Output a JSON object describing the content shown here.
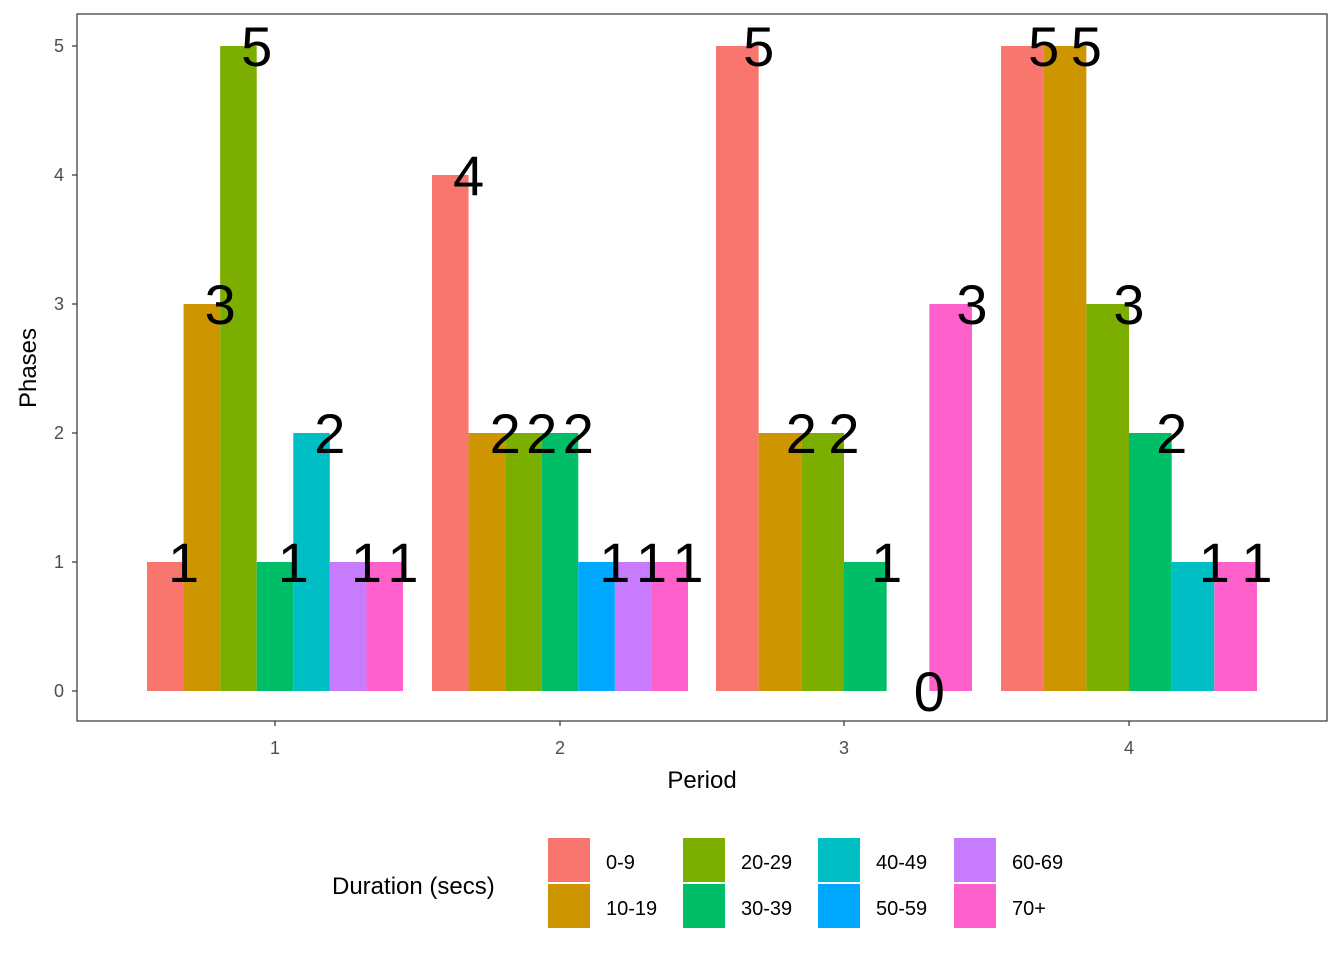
{
  "chart_data": {
    "type": "bar",
    "xlabel": "Period",
    "ylabel": "Phases",
    "categories": [
      "1",
      "2",
      "3",
      "4"
    ],
    "ylim": [
      -0.2,
      5.25
    ],
    "yticks": [
      "0",
      "1",
      "2",
      "3",
      "4",
      "5"
    ],
    "grid": false,
    "legend": {
      "title": "Duration (secs)",
      "position": "bottom"
    },
    "series": [
      {
        "name": "0-9",
        "color": "#F8766D"
      },
      {
        "name": "10-19",
        "color": "#CD9600"
      },
      {
        "name": "20-29",
        "color": "#7CAE00"
      },
      {
        "name": "30-39",
        "color": "#00BE67"
      },
      {
        "name": "40-49",
        "color": "#00BFC4"
      },
      {
        "name": "50-59",
        "color": "#00A9FF"
      },
      {
        "name": "60-69",
        "color": "#C77CFF"
      },
      {
        "name": "70+",
        "color": "#FF61CC"
      }
    ],
    "groups": [
      {
        "category": "1",
        "bars": [
          {
            "series": "0-9",
            "value": 1
          },
          {
            "series": "10-19",
            "value": 3
          },
          {
            "series": "20-29",
            "value": 5
          },
          {
            "series": "30-39",
            "value": 1
          },
          {
            "series": "40-49",
            "value": 2
          },
          {
            "series": "60-69",
            "value": 1
          },
          {
            "series": "70+",
            "value": 1
          }
        ]
      },
      {
        "category": "2",
        "bars": [
          {
            "series": "0-9",
            "value": 4
          },
          {
            "series": "10-19",
            "value": 2
          },
          {
            "series": "20-29",
            "value": 2
          },
          {
            "series": "30-39",
            "value": 2
          },
          {
            "series": "50-59",
            "value": 1
          },
          {
            "series": "60-69",
            "value": 1
          },
          {
            "series": "70+",
            "value": 1
          }
        ]
      },
      {
        "category": "3",
        "bars": [
          {
            "series": "0-9",
            "value": 5
          },
          {
            "series": "10-19",
            "value": 2
          },
          {
            "series": "20-29",
            "value": 2
          },
          {
            "series": "30-39",
            "value": 1
          },
          {
            "series": "50-59",
            "value": 0
          },
          {
            "series": "70+",
            "value": 3
          }
        ]
      },
      {
        "category": "4",
        "bars": [
          {
            "series": "0-9",
            "value": 5
          },
          {
            "series": "10-19",
            "value": 5
          },
          {
            "series": "20-29",
            "value": 3
          },
          {
            "series": "30-39",
            "value": 2
          },
          {
            "series": "40-49",
            "value": 1
          },
          {
            "series": "70+",
            "value": 1
          }
        ]
      }
    ]
  }
}
